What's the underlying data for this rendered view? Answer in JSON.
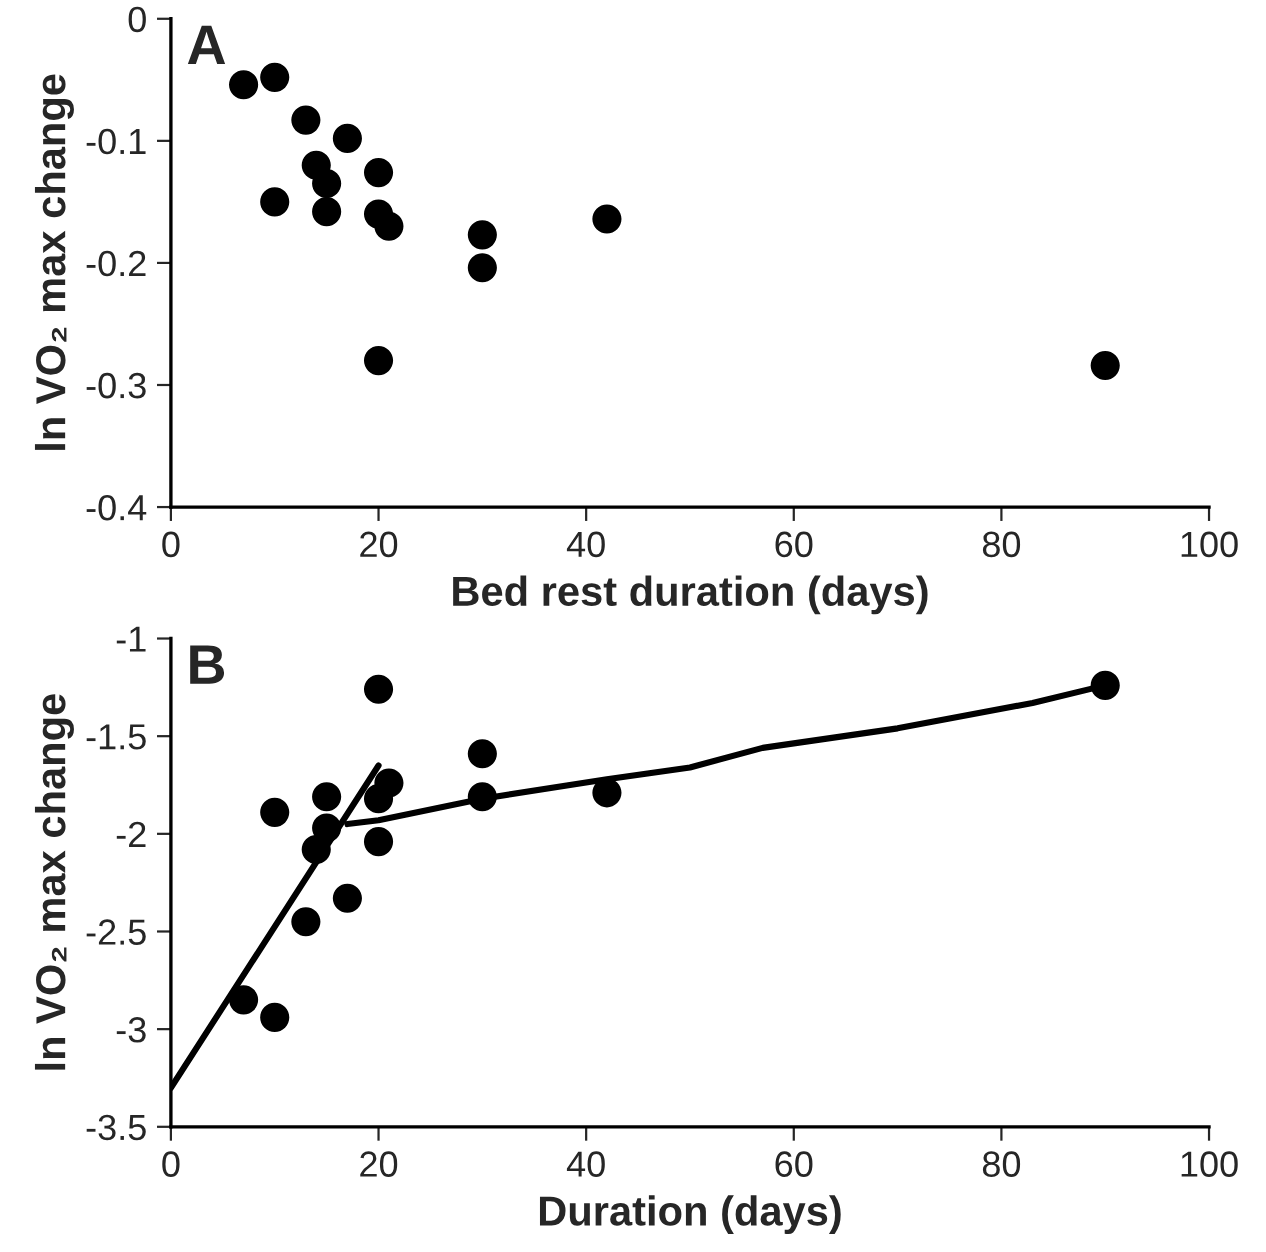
{
  "chart_data": [
    {
      "type": "scatter",
      "xlabel": "Bed rest duration (days)",
      "ylabel": "ln VO₂ max change",
      "annotations": [
        "A"
      ],
      "series": [
        {
          "color": "#000000",
          "x": [
            7,
            10,
            10,
            13,
            14,
            15,
            15,
            17,
            20,
            20,
            21,
            20,
            30,
            30,
            42,
            90
          ],
          "values": [
            -0.054,
            -0.048,
            -0.15,
            -0.083,
            -0.12,
            -0.135,
            -0.158,
            -0.098,
            -0.126,
            -0.16,
            -0.17,
            -0.28,
            -0.177,
            -0.204,
            -0.164,
            -0.284
          ]
        }
      ],
      "xlim": [
        0,
        100
      ],
      "xticks": [
        0,
        20,
        40,
        60,
        80,
        100
      ],
      "ylim": [
        -0.4,
        0
      ],
      "yticks": [
        -0.4,
        -0.3,
        -0.2,
        -0.1,
        0
      ],
      "marker": "circle",
      "grid": false
    },
    {
      "type": "scatter",
      "xlabel": "Duration (days)",
      "ylabel": "ln VO₂ max change",
      "annotations": [
        "B"
      ],
      "series": [
        {
          "color": "#000000",
          "x": [
            7,
            10,
            10,
            13,
            14,
            15,
            15,
            17,
            20,
            20,
            20,
            21,
            30,
            30,
            42,
            90
          ],
          "values": [
            -2.85,
            -1.89,
            -2.94,
            -2.45,
            -2.08,
            -1.81,
            -1.97,
            -2.33,
            -1.26,
            -1.82,
            -2.04,
            -1.74,
            -1.59,
            -1.81,
            -1.79,
            -1.24
          ]
        },
        {
          "type": "line",
          "marker": "none",
          "color": "#000000",
          "x": [
            0,
            20
          ],
          "values": [
            -3.3,
            -1.65
          ]
        },
        {
          "type": "line",
          "marker": "none",
          "color": "#000000",
          "x": [
            17,
            20,
            30,
            42,
            50,
            57,
            70,
            83,
            90
          ],
          "values": [
            -1.95,
            -1.93,
            -1.82,
            -1.72,
            -1.66,
            -1.56,
            -1.46,
            -1.33,
            -1.24
          ]
        }
      ],
      "xlim": [
        0,
        100
      ],
      "xticks": [
        0,
        20,
        40,
        60,
        80,
        100
      ],
      "ylim": [
        -3.5,
        -1
      ],
      "yticks": [
        -3.5,
        -3,
        -2.5,
        -2,
        -1.5,
        -1
      ],
      "marker": "circle",
      "grid": false
    }
  ]
}
